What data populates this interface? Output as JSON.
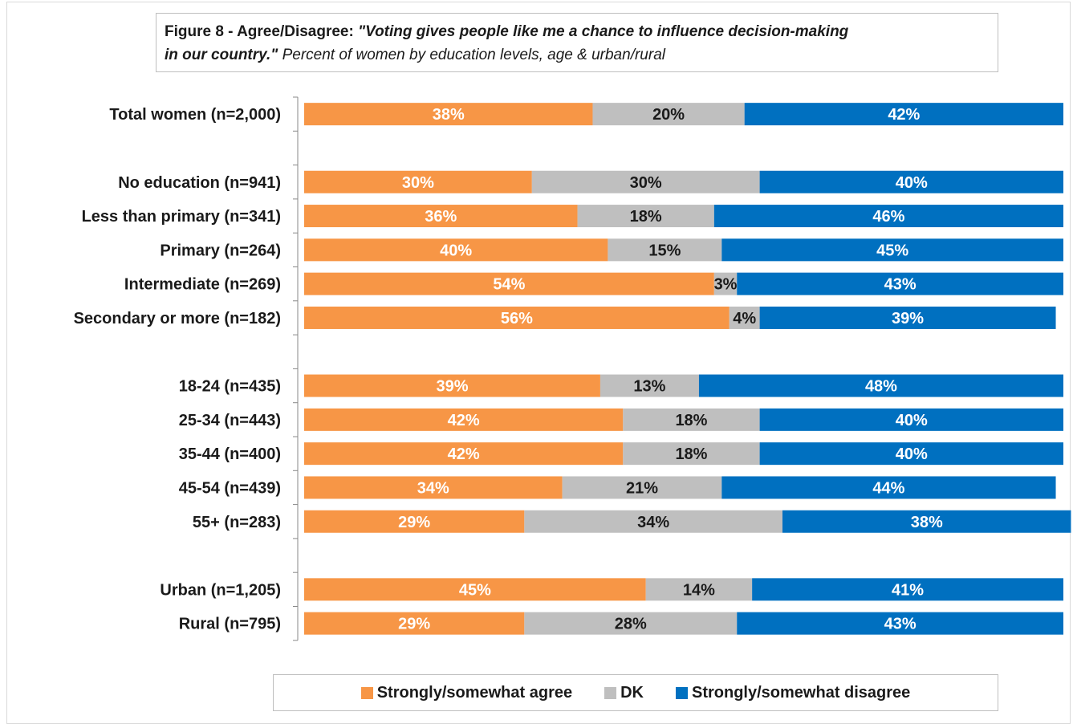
{
  "title": {
    "prefix": "Figure 8 - Agree/Disagree: ",
    "quote_line1": "\"Voting gives people like me a chance to influence decision-making",
    "quote_line2": "in our country.\"",
    "subtitle": " Percent of women by education levels, age & urban/rural"
  },
  "colors": {
    "agree": "#F79646",
    "dk": "#BFBFBF",
    "disagree": "#0070C0"
  },
  "chart_data": {
    "type": "bar",
    "orientation": "horizontal",
    "stacked": "100%",
    "title": "Figure 8 - Agree/Disagree: \"Voting gives people like me a chance to influence decision-making in our country.\" Percent of women by education levels, age & urban/rural",
    "xlim": [
      0,
      100
    ],
    "grid": false,
    "legend_position": "bottom",
    "categories": [
      "Total women (n=2,000)",
      "",
      "No education (n=941)",
      "Less than primary (n=341)",
      "Primary (n=264)",
      "Intermediate (n=269)",
      "Secondary or more (n=182)",
      "",
      "18-24 (n=435)",
      "25-34 (n=443)",
      "35-44 (n=400)",
      "45-54 (n=439)",
      "55+ (n=283)",
      "",
      "Urban (n=1,205)",
      "Rural (n=795)"
    ],
    "series": [
      {
        "name": "Strongly/somewhat agree",
        "values": [
          38,
          null,
          30,
          36,
          40,
          54,
          56,
          null,
          39,
          42,
          42,
          34,
          29,
          null,
          45,
          29
        ]
      },
      {
        "name": "DK",
        "values": [
          20,
          null,
          30,
          18,
          15,
          3,
          4,
          null,
          13,
          18,
          18,
          21,
          34,
          null,
          14,
          28
        ]
      },
      {
        "name": "Strongly/somewhat disagree",
        "values": [
          42,
          null,
          40,
          46,
          45,
          43,
          39,
          null,
          48,
          40,
          40,
          44,
          38,
          null,
          41,
          43
        ]
      }
    ],
    "labels": [
      [
        "38%",
        "",
        "30%",
        "36%",
        "40%",
        "54%",
        "56%",
        "",
        "39%",
        "42%",
        "42%",
        "34%",
        "29%",
        "",
        "45%",
        "29%"
      ],
      [
        "20%",
        "",
        "30%",
        "18%",
        "15%",
        "3%",
        "4%",
        "",
        "13%",
        "18%",
        "18%",
        "21%",
        "34%",
        "",
        "14%",
        "28%"
      ],
      [
        "42%",
        "",
        "40%",
        "46%",
        "45%",
        "43%",
        "39%",
        "",
        "48%",
        "40%",
        "40%",
        "44%",
        "38%",
        "",
        "41%",
        "43%"
      ]
    ]
  },
  "legend": {
    "agree": "Strongly/somewhat agree",
    "dk": "DK",
    "disagree": "Strongly/somewhat disagree"
  }
}
